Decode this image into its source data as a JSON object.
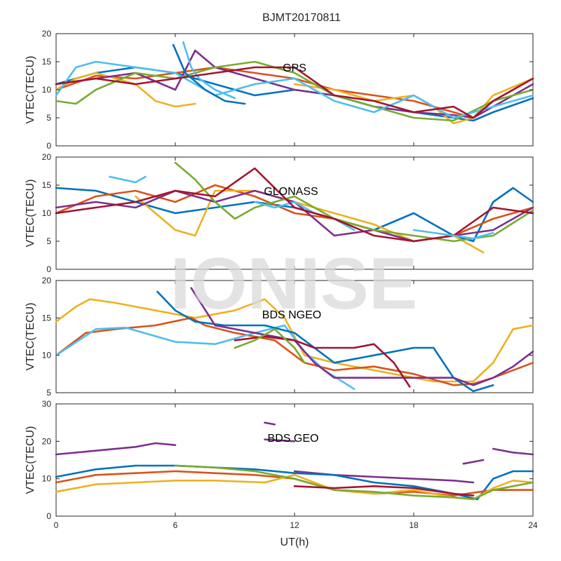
{
  "figure": {
    "title": "BJMT20170811",
    "watermark": "IONISE"
  },
  "palette": [
    "#0072BD",
    "#D95319",
    "#EDB120",
    "#7E2F8E",
    "#77AC30",
    "#4DBEEE",
    "#A2142F"
  ],
  "chart_data": [
    {
      "type": "line",
      "panel_label": "GPS",
      "xlabel": "",
      "ylabel": "VTEC(TECU)",
      "xlim": [
        0,
        24
      ],
      "ylim": [
        0,
        20
      ],
      "xticks": [
        0,
        6,
        12,
        18,
        24
      ],
      "yticks": [
        0,
        5,
        10,
        15,
        20
      ],
      "grid": false,
      "series": [
        {
          "color_index": 0,
          "x": [
            0,
            2,
            4,
            6,
            8,
            10,
            12,
            14,
            16,
            18,
            20,
            21,
            22,
            24
          ],
          "y": [
            11,
            13,
            14,
            13,
            11,
            9,
            10,
            9,
            7,
            6,
            5,
            4.5,
            6,
            8.5
          ]
        },
        {
          "color_index": 1,
          "x": [
            0,
            2,
            4,
            6,
            8,
            10,
            12,
            14,
            16,
            18,
            20,
            21,
            22,
            24
          ],
          "y": [
            10,
            12.5,
            12,
            13,
            14,
            13,
            12,
            10,
            9,
            8,
            6,
            5,
            8,
            12
          ]
        },
        {
          "color_index": 2,
          "x": [
            0,
            1,
            2,
            4,
            5,
            6,
            7
          ],
          "y": [
            10,
            12,
            13,
            11,
            8,
            7,
            7.5
          ]
        },
        {
          "color_index": 2,
          "x": [
            12,
            14,
            16,
            18,
            19,
            20,
            21,
            22,
            24
          ],
          "y": [
            11,
            10,
            8,
            9,
            7,
            4,
            5,
            9,
            12
          ]
        },
        {
          "color_index": 3,
          "x": [
            0,
            2,
            4,
            6,
            7,
            8,
            10,
            12,
            14,
            16,
            18,
            20,
            21,
            22,
            24
          ],
          "y": [
            11,
            12,
            13,
            10,
            17,
            14,
            12,
            10,
            9,
            7,
            6,
            5.5,
            5,
            7,
            11
          ]
        },
        {
          "color_index": 4,
          "x": [
            0,
            1,
            2,
            4,
            6,
            8,
            10,
            12,
            14,
            16,
            18,
            20,
            22,
            24
          ],
          "y": [
            8,
            7.5,
            10,
            13,
            12,
            14,
            15,
            13,
            9,
            7,
            5,
            4.5,
            8,
            10
          ]
        },
        {
          "color_index": 5,
          "x": [
            0,
            1,
            2,
            4,
            6,
            8,
            10,
            12,
            14,
            16,
            18,
            20,
            22,
            24
          ],
          "y": [
            9,
            14,
            15,
            14,
            13,
            9,
            11,
            12,
            8,
            6,
            9,
            5,
            7,
            9
          ]
        },
        {
          "color_index": 5,
          "x": [
            6.4,
            6.8,
            7.2,
            8,
            9
          ],
          "y": [
            18.5,
            14,
            12,
            10,
            8.5
          ]
        },
        {
          "color_index": 6,
          "x": [
            0,
            2,
            4,
            6,
            8,
            10,
            12,
            14,
            16,
            18,
            20,
            21,
            22,
            24
          ],
          "y": [
            11,
            12,
            11,
            12,
            13,
            14,
            14,
            9,
            8,
            6,
            7,
            5,
            8,
            12
          ]
        },
        {
          "color_index": 0,
          "x": [
            5.9,
            6.5,
            7.5,
            8.5,
            9.5
          ],
          "y": [
            18,
            13,
            10,
            8,
            7.5
          ]
        }
      ]
    },
    {
      "type": "line",
      "panel_label": "GLONASS",
      "xlabel": "",
      "ylabel": "VTEC(TECU)",
      "xlim": [
        0,
        24
      ],
      "ylim": [
        0,
        20
      ],
      "xticks": [
        0,
        6,
        12,
        18,
        24
      ],
      "yticks": [
        0,
        5,
        10,
        15,
        20
      ],
      "grid": false,
      "series": [
        {
          "color_index": 0,
          "x": [
            0,
            2,
            4,
            6,
            8,
            10,
            12,
            14,
            16,
            18,
            20,
            21,
            22,
            23,
            24
          ],
          "y": [
            14.5,
            14,
            12,
            10,
            11,
            12,
            11,
            9,
            7,
            10,
            6,
            5,
            12,
            14.5,
            12
          ]
        },
        {
          "color_index": 1,
          "x": [
            0,
            2,
            4,
            6,
            8,
            10,
            12,
            14,
            16,
            18,
            20,
            22,
            24
          ],
          "y": [
            10,
            13,
            14,
            12,
            15,
            13,
            10,
            9,
            7,
            5,
            6,
            9,
            11
          ]
        },
        {
          "color_index": 2,
          "x": [
            4,
            5,
            6,
            7,
            8,
            10,
            12,
            14,
            16,
            18,
            20,
            21.5
          ],
          "y": [
            13,
            10,
            7,
            6,
            14,
            14,
            12,
            10,
            8,
            5,
            6,
            3
          ]
        },
        {
          "color_index": 3,
          "x": [
            0,
            2,
            4,
            6,
            8,
            10,
            12,
            14,
            16,
            18,
            20,
            22,
            24
          ],
          "y": [
            11,
            12,
            11,
            14,
            12,
            14,
            12,
            6,
            7,
            5,
            6,
            7,
            11
          ]
        },
        {
          "color_index": 4,
          "x": [
            6,
            7,
            8,
            9,
            10,
            12,
            14,
            16,
            18,
            20,
            22,
            24
          ],
          "y": [
            19,
            16,
            12,
            9,
            11,
            13,
            9,
            7,
            6,
            5,
            6,
            10.5
          ]
        },
        {
          "color_index": 5,
          "x": [
            2.7,
            4,
            4.5
          ],
          "y": [
            16.5,
            15.5,
            16.5
          ]
        },
        {
          "color_index": 5,
          "x": [
            10,
            11,
            12,
            13,
            14,
            15
          ],
          "y": [
            12,
            11,
            12,
            10,
            9,
            7
          ]
        },
        {
          "color_index": 6,
          "x": [
            0,
            2,
            4,
            6,
            8,
            10,
            12,
            14,
            16,
            18,
            20,
            22,
            24
          ],
          "y": [
            10,
            11,
            12,
            14,
            13,
            18,
            11,
            9,
            6,
            5,
            6,
            11,
            10
          ]
        },
        {
          "color_index": 5,
          "x": [
            18,
            19,
            20,
            21,
            22
          ],
          "y": [
            7,
            6.5,
            6,
            5.5,
            6.5
          ]
        }
      ]
    },
    {
      "type": "line",
      "panel_label": "BDS NGEO",
      "xlabel": "",
      "ylabel": "VTEC(TECU)",
      "xlim": [
        0,
        24
      ],
      "ylim": [
        5,
        20
      ],
      "xticks": [
        0,
        6,
        12,
        18,
        24
      ],
      "yticks": [
        5,
        10,
        15,
        20
      ],
      "grid": false,
      "series": [
        {
          "color_index": 2,
          "x": [
            0,
            1,
            1.7,
            3,
            5,
            7,
            9,
            10.5,
            11.5,
            12.5,
            14,
            16,
            18,
            19,
            20,
            21,
            22,
            23,
            24
          ],
          "y": [
            14.5,
            16.5,
            17.5,
            17,
            16,
            15,
            16,
            17.5,
            15,
            10,
            9,
            8,
            7,
            6.5,
            6.5,
            6.5,
            9,
            13.5,
            14
          ]
        },
        {
          "color_index": 1,
          "x": [
            0,
            1.5,
            3,
            5,
            6.8,
            7.5,
            9,
            11,
            12.5,
            14,
            16,
            18,
            20,
            21,
            22,
            24
          ],
          "y": [
            10,
            13,
            13.5,
            14,
            15,
            14,
            13,
            12,
            9,
            8,
            8.5,
            7.5,
            6,
            6.2,
            7,
            9
          ]
        },
        {
          "color_index": 5,
          "x": [
            0,
            2,
            3.5,
            6,
            8,
            10,
            11.5,
            12.5,
            13.5,
            15
          ],
          "y": [
            10,
            13.5,
            13.7,
            11.8,
            11.5,
            13,
            14,
            10.5,
            8,
            5.5
          ]
        },
        {
          "color_index": 0,
          "x": [
            5.1,
            6,
            7,
            8.5,
            10.5,
            12,
            14,
            16,
            18,
            19,
            20,
            21,
            22
          ],
          "y": [
            18.5,
            16,
            14.5,
            14,
            14,
            13,
            9,
            10,
            11,
            11,
            7,
            5.2,
            6
          ]
        },
        {
          "color_index": 3,
          "x": [
            6.8,
            8,
            10,
            12,
            13,
            14,
            16,
            18,
            19,
            20,
            21,
            22,
            23,
            24
          ],
          "y": [
            19,
            14,
            13,
            12,
            9,
            7,
            7,
            7,
            7,
            7,
            6,
            7,
            8.5,
            10.5
          ]
        },
        {
          "color_index": 6,
          "x": [
            9,
            10.5,
            12,
            13,
            15,
            16,
            17,
            17.8
          ],
          "y": [
            12,
            12.5,
            12,
            11,
            11,
            11.5,
            9,
            5.8
          ]
        },
        {
          "color_index": 4,
          "x": [
            9,
            10,
            11,
            12,
            12.5
          ],
          "y": [
            11,
            12,
            13.5,
            11,
            9
          ]
        }
      ]
    },
    {
      "type": "line",
      "panel_label": "BDS GEO",
      "xlabel": "UT(h)",
      "ylabel": "VTEC(TECU)",
      "xlim": [
        0,
        24
      ],
      "ylim": [
        0,
        30
      ],
      "xticks": [
        0,
        6,
        12,
        18,
        24
      ],
      "yticks": [
        0,
        10,
        20,
        30
      ],
      "grid": false,
      "series": [
        {
          "color_index": 3,
          "x": [
            0,
            2,
            4,
            5,
            6
          ],
          "y": [
            16.5,
            17.5,
            18.5,
            19.5,
            19
          ]
        },
        {
          "color_index": 3,
          "x": [
            10.5,
            11
          ],
          "y": [
            25,
            24.5
          ]
        },
        {
          "color_index": 3,
          "x": [
            10.5,
            12
          ],
          "y": [
            20.5,
            20
          ]
        },
        {
          "color_index": 3,
          "x": [
            12,
            14,
            16,
            18,
            20,
            21
          ],
          "y": [
            12,
            11,
            10.5,
            10,
            9.5,
            9
          ]
        },
        {
          "color_index": 3,
          "x": [
            20.5,
            21.5
          ],
          "y": [
            14,
            15
          ]
        },
        {
          "color_index": 3,
          "x": [
            22,
            23,
            24
          ],
          "y": [
            18,
            17,
            16.5
          ]
        },
        {
          "color_index": 0,
          "x": [
            0,
            2,
            4,
            6,
            8,
            10,
            12,
            14,
            16,
            18,
            20,
            21.2,
            22,
            23,
            24
          ],
          "y": [
            10.5,
            12.5,
            13.5,
            13.5,
            13,
            12.5,
            11.5,
            11,
            9,
            8,
            6,
            4.5,
            10,
            12,
            12
          ]
        },
        {
          "color_index": 1,
          "x": [
            0,
            2,
            4,
            6,
            8,
            10,
            12,
            14,
            16,
            18,
            20,
            22,
            24
          ],
          "y": [
            9,
            11,
            11.5,
            12,
            11.5,
            11,
            10,
            7,
            6,
            6.5,
            5.5,
            7,
            7
          ]
        },
        {
          "color_index": 2,
          "x": [
            0,
            2,
            4,
            6,
            8,
            10.5,
            12,
            14,
            16,
            18,
            20,
            21,
            22,
            23,
            24
          ],
          "y": [
            6.5,
            8.5,
            9,
            9.5,
            9.5,
            9,
            11,
            7,
            6,
            7,
            5,
            4.5,
            7.5,
            9.5,
            9
          ]
        },
        {
          "color_index": 4,
          "x": [
            6,
            8,
            10,
            12,
            14,
            16,
            18,
            20,
            21,
            22,
            24
          ],
          "y": [
            13.5,
            13,
            12,
            10,
            7,
            6.5,
            5.5,
            5,
            4.5,
            7,
            9
          ]
        },
        {
          "color_index": 6,
          "x": [
            12,
            14,
            16,
            18,
            20,
            21
          ],
          "y": [
            8,
            7.5,
            8,
            7.5,
            6,
            5.5
          ]
        }
      ]
    }
  ]
}
